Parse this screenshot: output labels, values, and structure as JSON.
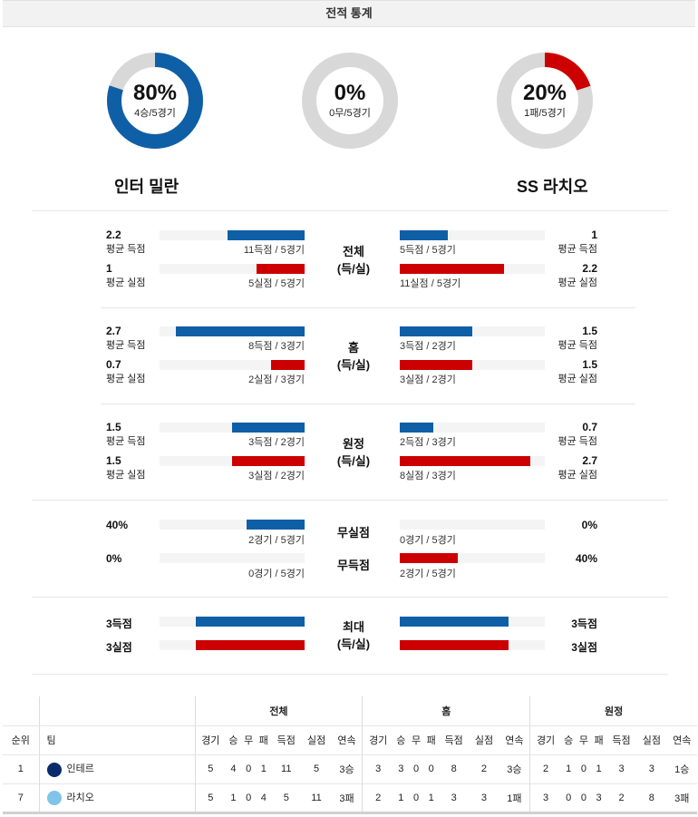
{
  "header": {
    "title": "전적 통계"
  },
  "donuts": [
    {
      "pct": "80%",
      "sub": "4승/5경기",
      "fraction": 0.8,
      "color": "#0f5fa6"
    },
    {
      "pct": "0%",
      "sub": "0무/5경기",
      "fraction": 0.0,
      "color": "#d8d8d8"
    },
    {
      "pct": "20%",
      "sub": "1패/5경기",
      "fraction": 0.2,
      "color": "#cc0000"
    }
  ],
  "teams": {
    "home": "인터 밀란",
    "away": "SS 라치오"
  },
  "sections": [
    {
      "label_line1": "전체",
      "label_line2": "(득/실)",
      "rows": [
        {
          "l_val": "2.2",
          "l_lbl": "평균 득점",
          "l_cap": "11득점 / 5경기",
          "l_frac": 0.53,
          "r_val": "1",
          "r_lbl": "평균 득점",
          "r_cap": "5득점 / 5경기",
          "r_frac": 0.33,
          "l_color": "blue",
          "r_color": "blue"
        },
        {
          "l_val": "1",
          "l_lbl": "평균 실점",
          "l_cap": "5실점 / 5경기",
          "l_frac": 0.33,
          "r_val": "2.2",
          "r_lbl": "평균 실점",
          "r_cap": "11실점 / 5경기",
          "r_frac": 0.72,
          "l_color": "red",
          "r_color": "red"
        }
      ]
    },
    {
      "label_line1": "홈",
      "label_line2": "(득/실)",
      "rows": [
        {
          "l_val": "2.7",
          "l_lbl": "평균 득점",
          "l_cap": "8득점 / 3경기",
          "l_frac": 0.89,
          "r_val": "1.5",
          "r_lbl": "평균 득점",
          "r_cap": "3득점 / 2경기",
          "r_frac": 0.5,
          "l_color": "blue",
          "r_color": "blue"
        },
        {
          "l_val": "0.7",
          "l_lbl": "평균 실점",
          "l_cap": "2실점 / 3경기",
          "l_frac": 0.23,
          "r_val": "1.5",
          "r_lbl": "평균 실점",
          "r_cap": "3실점 / 2경기",
          "r_frac": 0.5,
          "l_color": "red",
          "r_color": "red"
        }
      ]
    },
    {
      "label_line1": "원정",
      "label_line2": "(득/실)",
      "rows": [
        {
          "l_val": "1.5",
          "l_lbl": "평균 득점",
          "l_cap": "3득점 / 2경기",
          "l_frac": 0.5,
          "r_val": "0.7",
          "r_lbl": "평균 득점",
          "r_cap": "2득점 / 3경기",
          "r_frac": 0.23,
          "l_color": "blue",
          "r_color": "blue"
        },
        {
          "l_val": "1.5",
          "l_lbl": "평균 실점",
          "l_cap": "3실점 / 2경기",
          "l_frac": 0.5,
          "r_val": "2.7",
          "r_lbl": "평균 실점",
          "r_cap": "8실점 / 3경기",
          "r_frac": 0.9,
          "l_color": "red",
          "r_color": "red"
        }
      ]
    }
  ],
  "clean": {
    "label1": "무실점",
    "label2": "무득점",
    "rows": [
      {
        "l_val": "40%",
        "l_cap": "2경기 / 5경기",
        "l_frac": 0.4,
        "r_val": "0%",
        "r_cap": "0경기 / 5경기",
        "r_frac": 0.0,
        "color": "blue"
      },
      {
        "l_val": "0%",
        "l_cap": "0경기 / 5경기",
        "l_frac": 0.0,
        "r_val": "40%",
        "r_cap": "2경기 / 5경기",
        "r_frac": 0.4,
        "color": "red"
      }
    ]
  },
  "max": {
    "label_line1": "최대",
    "label_line2": "(득/실)",
    "rows": [
      {
        "l_val": "3득점",
        "r_val": "3득점",
        "l_frac": 0.75,
        "r_frac": 0.75,
        "color": "blue"
      },
      {
        "l_val": "3실점",
        "r_val": "3실점",
        "l_frac": 0.75,
        "r_frac": 0.75,
        "color": "red"
      }
    ]
  },
  "standings": {
    "group_headers": [
      "전체",
      "홈",
      "원정"
    ],
    "rank_header": "순위",
    "team_header": "팀",
    "cols": [
      "경기",
      "승",
      "무",
      "패",
      "득점",
      "실점",
      "연속"
    ],
    "rows": [
      {
        "rank": "1",
        "team": "인테르",
        "logo_color": "#0a2a6b",
        "all": [
          "5",
          "4",
          "0",
          "1",
          "11",
          "5",
          "3승"
        ],
        "home": [
          "3",
          "3",
          "0",
          "0",
          "8",
          "2",
          "3승"
        ],
        "away": [
          "2",
          "1",
          "0",
          "1",
          "3",
          "3",
          "1승"
        ]
      },
      {
        "rank": "7",
        "team": "라치오",
        "logo_color": "#7fc4ea",
        "all": [
          "5",
          "1",
          "0",
          "4",
          "5",
          "11",
          "3패"
        ],
        "home": [
          "2",
          "1",
          "0",
          "1",
          "3",
          "3",
          "1패"
        ],
        "away": [
          "3",
          "0",
          "0",
          "3",
          "2",
          "8",
          "3패"
        ]
      }
    ]
  }
}
